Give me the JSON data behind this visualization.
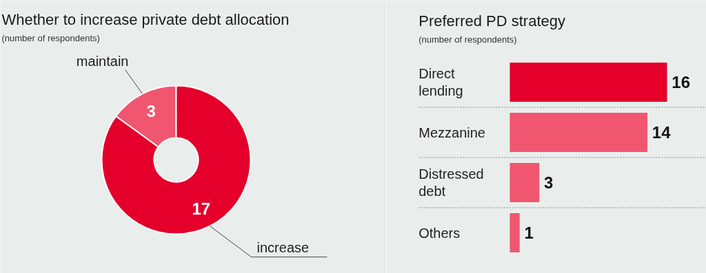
{
  "chart_data": [
    {
      "type": "donut",
      "title": "Whether to increase private debt allocation",
      "subtitle": "(number of respondents)",
      "categories": [
        "maintain",
        "increase"
      ],
      "values": [
        3,
        17
      ],
      "colors": [
        "#f0566f",
        "#e4002b"
      ],
      "data_labels": true
    },
    {
      "type": "bar",
      "orientation": "horizontal",
      "title": "Preferred PD strategy",
      "subtitle": "(number of respondents)",
      "categories": [
        "Direct lending",
        "Mezzanine",
        "Distressed debt",
        "Others"
      ],
      "values": [
        16,
        14,
        3,
        1
      ],
      "colors": [
        "#e4002b",
        "#f0566f",
        "#f0566f",
        "#f0566f"
      ],
      "data_labels": true,
      "grid": "y"
    }
  ]
}
